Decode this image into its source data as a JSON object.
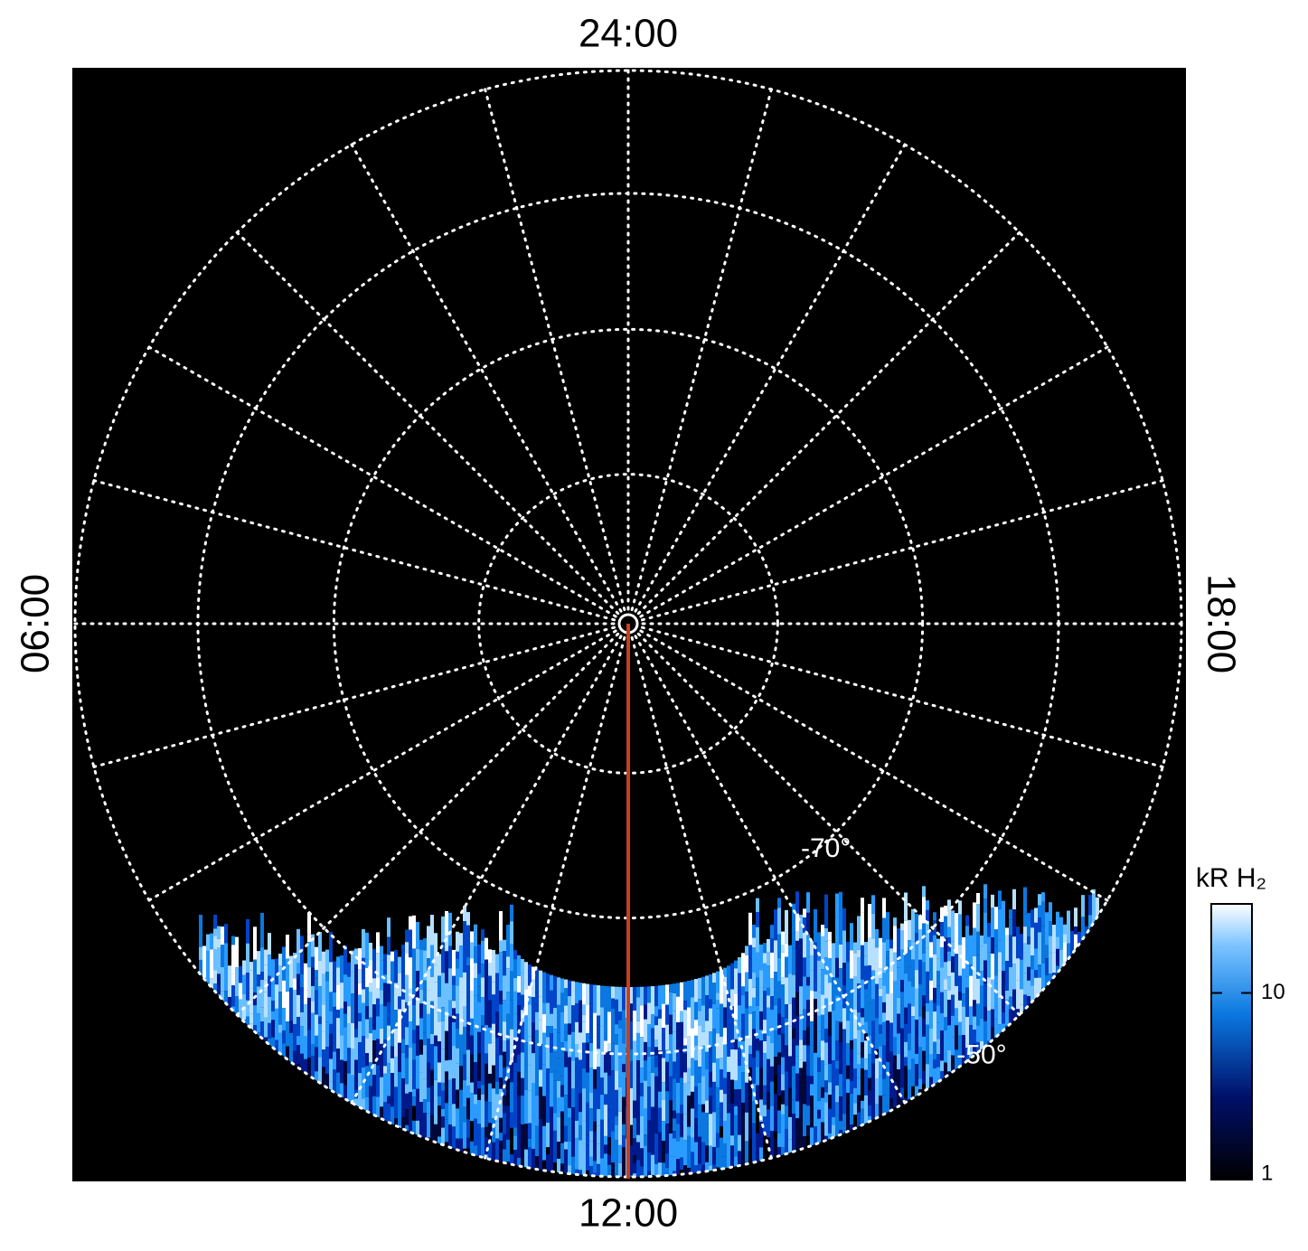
{
  "chart_data": {
    "type": "polar",
    "time_labels": {
      "top": "24:00",
      "bottom": "12:00",
      "left": "06:00",
      "right": "18:00"
    },
    "rlim": [
      -90,
      -50
    ],
    "rgrid": [
      -80,
      -70,
      -60,
      -50
    ],
    "rticks": [
      {
        "value": -70,
        "label": "-70°"
      },
      {
        "value": -50,
        "label": "-50°"
      }
    ],
    "meridian_color": "#c8401a",
    "colorbar": {
      "title": "kR H₂",
      "scale": "log",
      "lim": [
        1,
        30
      ],
      "ticks": [
        1,
        10
      ]
    }
  }
}
